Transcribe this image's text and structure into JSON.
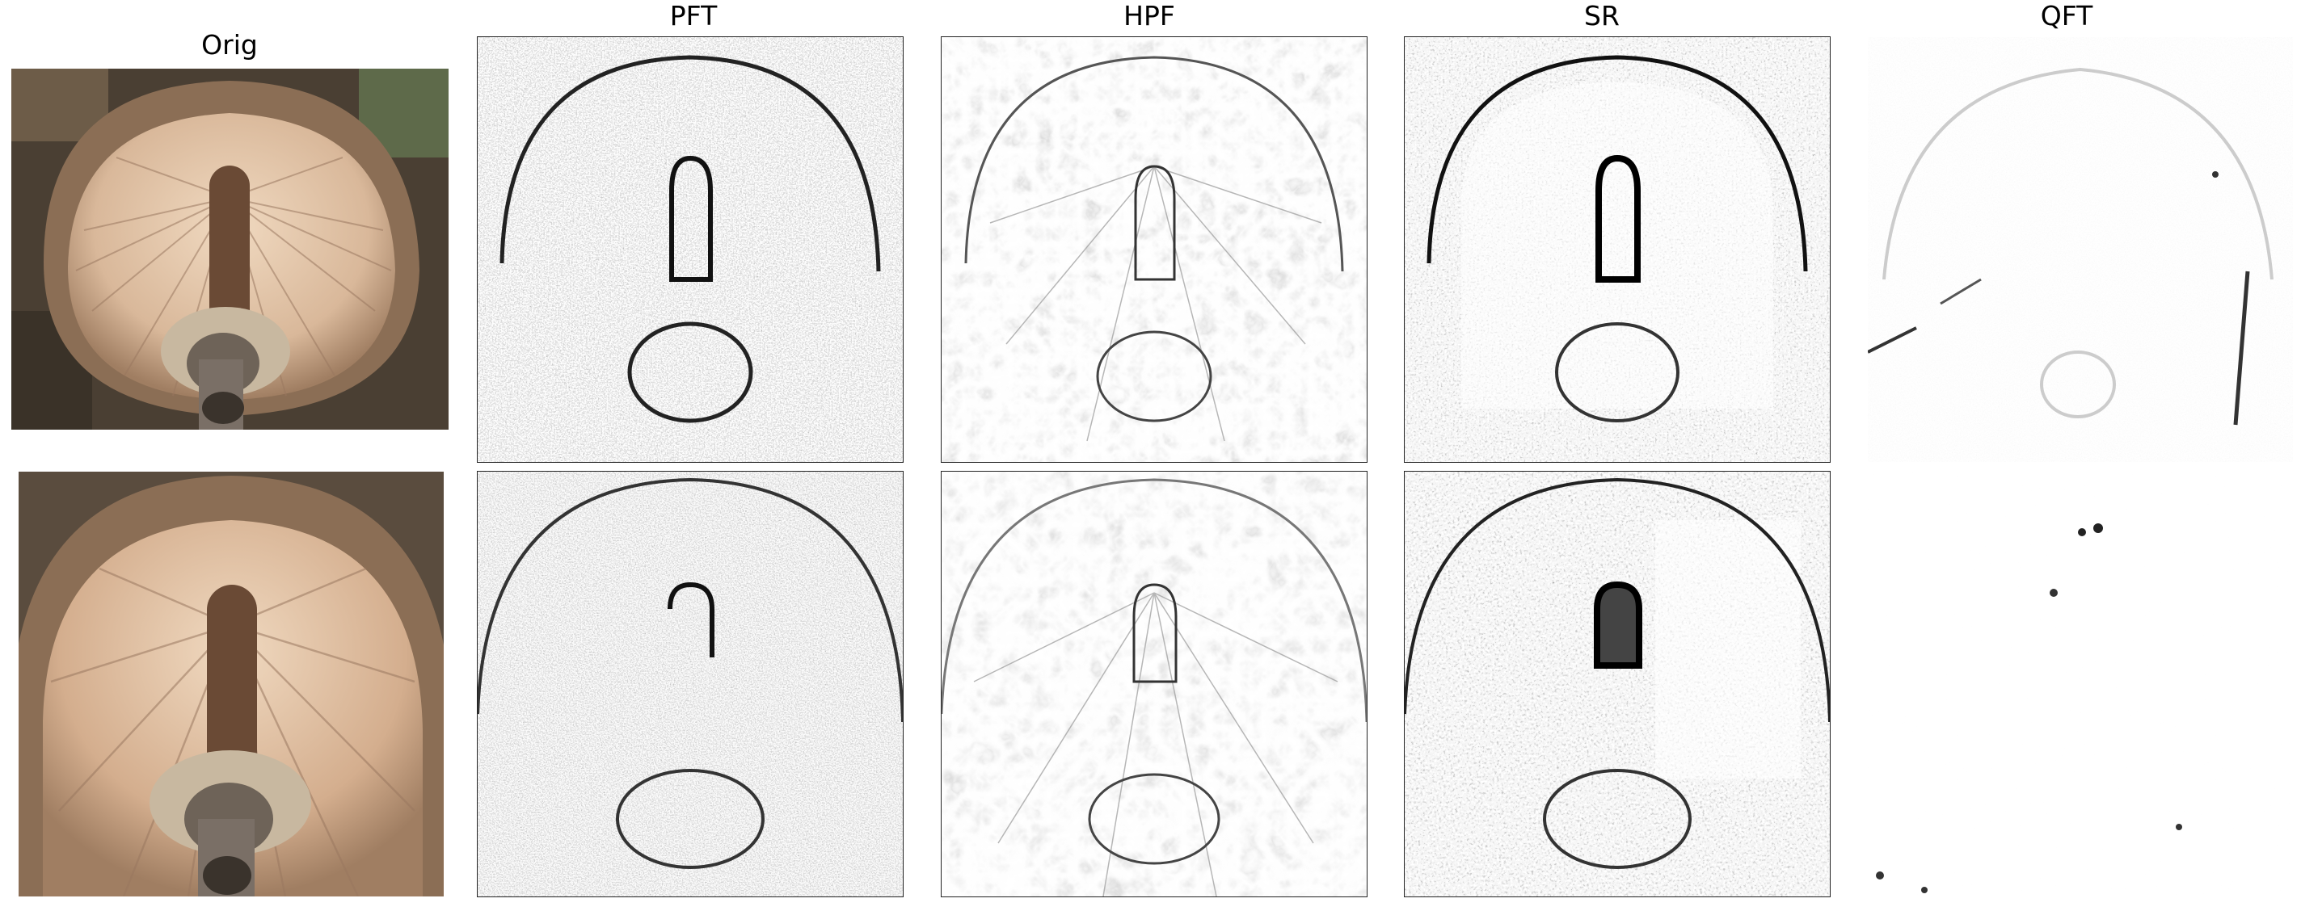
{
  "figure": {
    "columns": [
      {
        "key": "orig",
        "title": "Orig"
      },
      {
        "key": "pft",
        "title": "PFT"
      },
      {
        "key": "hpf",
        "title": "HPF"
      },
      {
        "key": "sr",
        "title": "SR"
      },
      {
        "key": "qft",
        "title": "QFT"
      }
    ],
    "rows": 2
  },
  "colors": {
    "cap_rim": "#8b6e55",
    "gills": "#d9b89a",
    "gills_dark": "#a07e62",
    "stem": "#6a4a35",
    "ground": "#4a3f33",
    "map_ink": "#1a1a1a"
  }
}
